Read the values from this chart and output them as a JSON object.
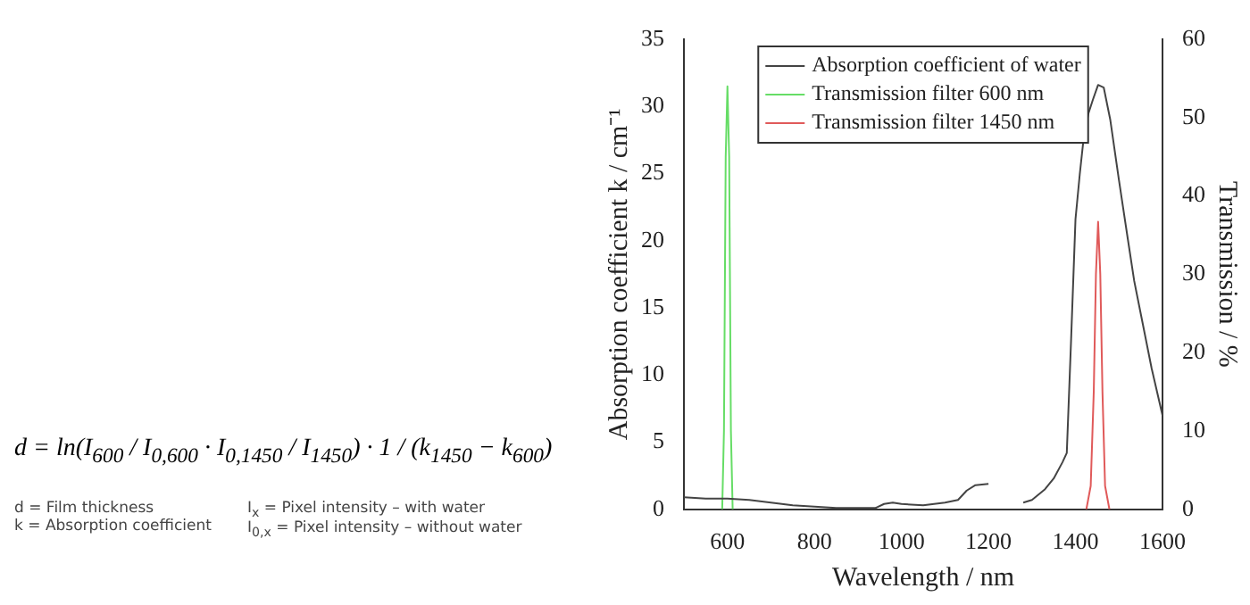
{
  "chart_data": {
    "type": "line",
    "xlabel": "Wavelength / nm",
    "ylabel": "Absorption coefficient k / cm⁻¹",
    "y2label": "Transmission / %",
    "annotations": [
      "d = ln(I$_{600}$ / I$_{0,600}$ · I$_{0,1450}$ / I$_{1450}$) · 1 / (k$_{1450}$ − k$_{600}$)",
      "d = Film thickness",
      "k = Absorption coefficient",
      "I$_{x}$ = Pixel intensity – with water",
      "I$_{0,x}$ = Pixel intensity – without water"
    ],
    "xlim": [
      500,
      1600
    ],
    "xticks": [
      600,
      800,
      1000,
      1200,
      1400,
      1600
    ],
    "ylim": [
      0,
      35
    ],
    "yticks": [
      0,
      5,
      10,
      15,
      20,
      25,
      30,
      35
    ],
    "y2lim": [
      0,
      60
    ],
    "y2ticks": [
      0,
      10,
      20,
      30,
      40,
      50,
      60
    ],
    "legend": "top",
    "grid": false,
    "marker": "none",
    "line_style": "solid",
    "series": [
      {
        "name": "Absorption coefficient of water",
        "color": "#444444",
        "x": [
          500,
          550,
          600,
          650,
          700,
          750,
          800,
          850,
          900,
          940,
          960,
          980,
          1000,
          1050,
          1100,
          1130,
          1150,
          1170,
          1200,
          1250,
          1280,
          1300,
          1330,
          1350,
          1370,
          1380,
          1390,
          1400,
          1410,
          1420,
          1430,
          1440,
          1452,
          1465,
          1480,
          1500,
          1519,
          1535,
          1551,
          1575,
          1600
        ],
        "values": [
          0.9,
          0.8,
          0.8,
          0.7,
          0.5,
          0.3,
          0.2,
          0.1,
          0.1,
          0.1,
          0.4,
          0.5,
          0.4,
          0.3,
          0.5,
          0.7,
          1.4,
          1.8,
          1.9,
          null,
          0.5,
          0.7,
          1.5,
          2.3,
          3.5,
          4.2,
          12.7,
          21.6,
          25,
          28,
          29.5,
          30.5,
          31.6,
          31.4,
          29,
          24.5,
          20.4,
          17,
          14.4,
          10.5,
          7
        ]
      },
      {
        "name": "Transmission filter 600 nm",
        "color": "#66dd66",
        "axis": "y2",
        "x": [
          588,
          592,
          596,
          600,
          604,
          608,
          612
        ],
        "values": [
          0,
          10,
          45,
          54,
          45,
          10,
          0
        ]
      },
      {
        "name": "Transmission filter 1450 nm",
        "color": "#e05a5a",
        "axis": "y2",
        "x": [
          1425,
          1435,
          1442,
          1447,
          1452,
          1457,
          1462,
          1468,
          1478
        ],
        "values": [
          0,
          3,
          15,
          30,
          36.7,
          30,
          15,
          3,
          0
        ]
      }
    ]
  }
}
